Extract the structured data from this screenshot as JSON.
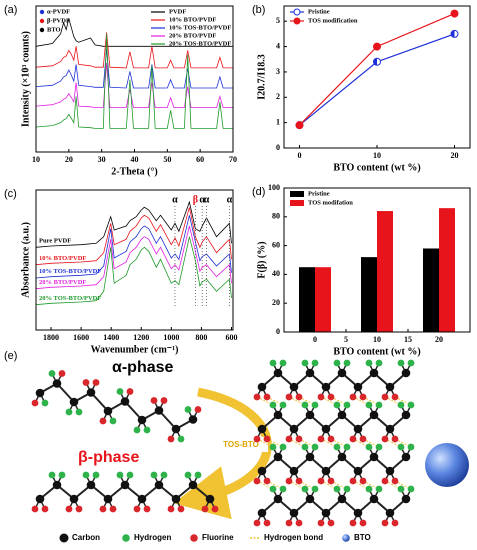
{
  "chart_data": [
    {
      "type": "line",
      "label": "(a)",
      "xlabel": "2-Theta (°)",
      "ylabel": "Intensity (×10³ counts)",
      "xlim": [
        10,
        70
      ],
      "xticks": [
        10,
        20,
        30,
        40,
        50,
        60,
        70
      ],
      "ylim": [
        0,
        10.5
      ],
      "legend": "upper right",
      "symbol_legend": [
        "α-PVDF",
        "β-PVDF",
        "BTO"
      ],
      "x": [
        10,
        15,
        17.5,
        18.4,
        19.2,
        20,
        20.8,
        21.5,
        22.2,
        23,
        26.6,
        28,
        30.5,
        31.5,
        32.5,
        37.5,
        38.6,
        39.7,
        44.3,
        45.3,
        46.3,
        50,
        51,
        52,
        55.2,
        56.2,
        57.2,
        65,
        66,
        67,
        70
      ],
      "series": [
        {
          "name": "PVDF",
          "color": "#000000",
          "values": [
            7.6,
            7.8,
            8.5,
            9.3,
            8.8,
            9.6,
            8.9,
            8.3,
            8.0,
            7.9,
            8.2,
            7.7,
            7.6,
            7.6,
            7.6,
            7.6,
            7.6,
            7.6,
            7.6,
            7.6,
            7.6,
            7.6,
            7.6,
            7.6,
            7.6,
            7.6,
            7.6,
            7.6,
            7.6,
            7.6,
            7.6
          ]
        },
        {
          "name": "10% BTO/PVDF",
          "color": "#e8141b",
          "values": [
            6.1,
            6.2,
            6.5,
            6.8,
            6.9,
            7.3,
            7.0,
            6.6,
            7.6,
            6.3,
            6.2,
            6.1,
            6.1,
            8.6,
            6.1,
            6.05,
            7.2,
            6.05,
            6.05,
            7.6,
            6.05,
            6.05,
            6.6,
            6.05,
            6.05,
            7.3,
            6.05,
            6.05,
            6.8,
            6.05,
            6.05
          ]
        },
        {
          "name": "10% TOS-BTO/PVDF",
          "color": "#1d2fd6",
          "values": [
            4.7,
            4.8,
            5.1,
            5.4,
            5.5,
            5.9,
            5.5,
            5.1,
            6.3,
            4.8,
            4.7,
            4.65,
            4.65,
            7.4,
            4.65,
            4.6,
            5.8,
            4.6,
            4.6,
            6.3,
            4.6,
            4.6,
            5.2,
            4.6,
            4.6,
            6.0,
            4.6,
            4.6,
            5.4,
            4.6,
            4.6
          ]
        },
        {
          "name": "20% BTO/PVDF",
          "color": "#e21fe0",
          "values": [
            3.3,
            3.4,
            3.6,
            3.8,
            3.9,
            4.2,
            3.9,
            3.6,
            5.0,
            3.3,
            3.25,
            3.2,
            3.2,
            6.4,
            3.2,
            3.2,
            4.5,
            3.2,
            3.2,
            5.0,
            3.2,
            3.2,
            3.9,
            3.2,
            3.2,
            4.7,
            3.2,
            3.2,
            4.0,
            3.2,
            3.2
          ]
        },
        {
          "name": "20% TOS-BTO/PVDF",
          "color": "#1f9a2a",
          "values": [
            1.8,
            1.9,
            2.1,
            2.3,
            2.4,
            2.7,
            2.4,
            2.1,
            4.0,
            1.8,
            1.75,
            1.7,
            1.7,
            8.5,
            1.7,
            1.7,
            5.2,
            1.7,
            1.7,
            6.2,
            1.7,
            1.7,
            3.0,
            1.7,
            1.7,
            7.0,
            1.7,
            1.7,
            3.6,
            1.7,
            1.7
          ]
        }
      ]
    },
    {
      "type": "line",
      "label": "(b)",
      "xlabel": "BTO content (wt %)",
      "ylabel": "I20.7/I18.3",
      "xlim": [
        -2,
        22
      ],
      "xticks": [
        0,
        10,
        20
      ],
      "ylim": [
        0,
        5.6
      ],
      "yticks": [
        0,
        1,
        2,
        3,
        4,
        5
      ],
      "legend": "upper left",
      "markers": true,
      "x": [
        0,
        10,
        20
      ],
      "series": [
        {
          "name": "Pristine",
          "color": "#1d2fd6",
          "marker": "half",
          "values": [
            0.9,
            3.4,
            4.5
          ]
        },
        {
          "name": "TOS modification",
          "color": "#e8141b",
          "marker": "full",
          "values": [
            0.9,
            4.0,
            5.3
          ]
        }
      ]
    },
    {
      "type": "line",
      "label": "(c)",
      "xlabel": "Wavenumber (cm⁻¹)",
      "ylabel": "Absorbance (a.u.)",
      "xlim": [
        1900,
        590
      ],
      "xticks": [
        1800,
        1600,
        1400,
        1200,
        1000,
        800,
        600
      ],
      "ylim": [
        0,
        10.5
      ],
      "legend": "inline",
      "annotations": [
        {
          "text": "α",
          "x": 976,
          "color": "#000000"
        },
        {
          "text": "β",
          "x": 840,
          "color": "#e8141b"
        },
        {
          "text": "α",
          "x": 795,
          "color": "#000000"
        },
        {
          "text": "α",
          "x": 766,
          "color": "#000000"
        },
        {
          "text": "α",
          "x": 614,
          "color": "#000000"
        }
      ],
      "x": [
        1900,
        1800,
        1600,
        1500,
        1450,
        1403,
        1380,
        1300,
        1275,
        1234,
        1200,
        1180,
        1150,
        1100,
        1072,
        1000,
        976,
        950,
        880,
        840,
        810,
        795,
        766,
        700,
        614,
        600
      ],
      "series": [
        {
          "name": "Pure PVDF",
          "color": "#000000",
          "values": [
            6.2,
            6.3,
            6.4,
            6.5,
            7.0,
            8.5,
            7.5,
            7.8,
            8.2,
            8.5,
            9.0,
            9.2,
            9.0,
            8.2,
            8.6,
            7.5,
            8.0,
            7.4,
            9.6,
            7.6,
            7.4,
            7.8,
            8.4,
            7.0,
            8.0,
            6.5
          ]
        },
        {
          "name": "10% BTO/PVDF",
          "color": "#e8141b",
          "values": [
            4.9,
            5.0,
            5.1,
            5.2,
            5.8,
            8.0,
            6.4,
            6.8,
            7.4,
            7.8,
            8.4,
            8.6,
            8.4,
            7.4,
            7.9,
            6.4,
            6.9,
            6.3,
            9.2,
            7.0,
            6.2,
            6.6,
            7.0,
            5.8,
            6.8,
            5.3
          ]
        },
        {
          "name": "10% TOS-BTO/PVDF",
          "color": "#1d2fd6",
          "values": [
            3.9,
            4.0,
            4.1,
            4.2,
            4.8,
            7.6,
            5.4,
            5.9,
            6.6,
            7.0,
            7.6,
            7.8,
            7.6,
            6.5,
            7.0,
            5.4,
            5.7,
            5.3,
            8.6,
            6.6,
            5.2,
            5.5,
            5.7,
            4.8,
            5.7,
            4.3
          ]
        },
        {
          "name": "20% BTO/PVDF",
          "color": "#e21fe0",
          "values": [
            3.1,
            3.2,
            3.3,
            3.4,
            4.0,
            6.8,
            4.6,
            5.1,
            5.8,
            6.2,
            6.8,
            7.0,
            6.8,
            5.7,
            6.2,
            4.6,
            4.9,
            4.5,
            7.8,
            5.9,
            4.4,
            4.7,
            4.9,
            4.0,
            4.9,
            3.5
          ]
        },
        {
          "name": "20% TOS-BTO/PVDF",
          "color": "#1f9a2a",
          "values": [
            1.9,
            2.0,
            2.1,
            2.2,
            2.9,
            6.2,
            3.5,
            4.1,
            4.9,
            5.3,
            6.0,
            6.2,
            5.9,
            4.7,
            5.3,
            3.5,
            3.7,
            3.4,
            7.0,
            5.2,
            3.3,
            3.6,
            3.8,
            2.9,
            3.8,
            2.4
          ]
        }
      ]
    },
    {
      "type": "bar",
      "label": "(d)",
      "xlabel": "BTO content (wt %)",
      "ylabel": "F(β) (%)",
      "xlim": [
        -5,
        25
      ],
      "xticks": [
        0,
        5,
        10,
        15,
        20
      ],
      "ylim": [
        0,
        100
      ],
      "yticks": [
        0,
        20,
        40,
        60,
        80,
        100
      ],
      "legend": "upper left",
      "x": [
        0,
        10,
        20
      ],
      "series": [
        {
          "name": "Pristine",
          "color": "#000000",
          "values": [
            45,
            52,
            58
          ]
        },
        {
          "name": "TOS modifation",
          "color": "#e8141b",
          "values": [
            45,
            84,
            86
          ]
        }
      ]
    }
  ],
  "panel_e": {
    "label": "(e)",
    "alpha_phase": "α-phase",
    "beta_phase": "β-phase",
    "arrow_label": "TOS-BTO",
    "legend": [
      "Carbon",
      "Hydrogen",
      "Fluorine",
      "Hydrogen bond",
      "BTO"
    ]
  }
}
